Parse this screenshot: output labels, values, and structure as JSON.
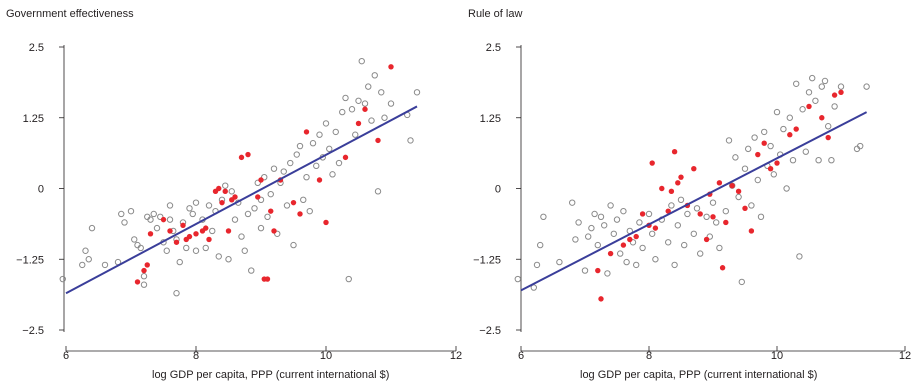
{
  "chart_data": [
    {
      "type": "scatter",
      "title": "Government effectiveness",
      "xlabel": "log GDP per capita, PPP (current international $)",
      "ylabel": "",
      "xlim": [
        6,
        12
      ],
      "ylim": [
        -2.5,
        2.5
      ],
      "xticks": [
        6,
        8,
        10,
        12
      ],
      "yticks": [
        2.5,
        1.25,
        0,
        -1.25,
        -2.5
      ],
      "ytick_labels": [
        "2.5",
        "1.25",
        "0",
        "−1.25",
        "−2.5"
      ],
      "grid": false,
      "colors": {
        "other": "#8a8a8a",
        "highlight": "#e8262d",
        "fit": "#3a3e9a"
      },
      "fit_line": {
        "x": [
          6.0,
          11.4
        ],
        "y": [
          -1.85,
          1.45
        ]
      },
      "series": [
        {
          "marker": "open-circle",
          "color": "#8a8a8a",
          "points": [
            [
              5.95,
              -1.6
            ],
            [
              6.25,
              -1.35
            ],
            [
              6.3,
              -1.1
            ],
            [
              6.35,
              -1.25
            ],
            [
              6.4,
              -0.7
            ],
            [
              6.6,
              -1.35
            ],
            [
              6.8,
              -1.3
            ],
            [
              6.85,
              -0.45
            ],
            [
              6.9,
              -0.6
            ],
            [
              7.0,
              -0.4
            ],
            [
              7.05,
              -0.9
            ],
            [
              7.1,
              -1.0
            ],
            [
              7.15,
              -1.05
            ],
            [
              7.2,
              -1.55
            ],
            [
              7.2,
              -1.7
            ],
            [
              7.25,
              -0.5
            ],
            [
              7.3,
              -0.55
            ],
            [
              7.35,
              -0.45
            ],
            [
              7.4,
              -0.7
            ],
            [
              7.45,
              -0.5
            ],
            [
              7.5,
              -0.95
            ],
            [
              7.55,
              -1.1
            ],
            [
              7.6,
              -0.3
            ],
            [
              7.6,
              -0.55
            ],
            [
              7.65,
              -0.75
            ],
            [
              7.7,
              -0.9
            ],
            [
              7.7,
              -1.85
            ],
            [
              7.75,
              -1.3
            ],
            [
              7.8,
              -0.6
            ],
            [
              7.85,
              -1.05
            ],
            [
              7.9,
              -0.35
            ],
            [
              7.95,
              -0.45
            ],
            [
              8.0,
              -1.1
            ],
            [
              8.0,
              -0.25
            ],
            [
              8.1,
              -0.55
            ],
            [
              8.15,
              -1.05
            ],
            [
              8.2,
              -0.3
            ],
            [
              8.25,
              -0.75
            ],
            [
              8.3,
              -0.4
            ],
            [
              8.35,
              -1.2
            ],
            [
              8.4,
              -0.2
            ],
            [
              8.45,
              0.05
            ],
            [
              8.5,
              -1.25
            ],
            [
              8.55,
              -0.05
            ],
            [
              8.6,
              -0.55
            ],
            [
              8.65,
              -0.25
            ],
            [
              8.7,
              -0.85
            ],
            [
              8.75,
              -1.1
            ],
            [
              8.8,
              -0.45
            ],
            [
              8.85,
              -1.45
            ],
            [
              8.9,
              -0.35
            ],
            [
              8.95,
              0.1
            ],
            [
              9.0,
              -0.7
            ],
            [
              9.0,
              -0.2
            ],
            [
              9.05,
              0.2
            ],
            [
              9.1,
              -0.5
            ],
            [
              9.15,
              -0.1
            ],
            [
              9.2,
              0.35
            ],
            [
              9.25,
              -0.8
            ],
            [
              9.3,
              0.1
            ],
            [
              9.35,
              0.3
            ],
            [
              9.4,
              -0.3
            ],
            [
              9.45,
              0.45
            ],
            [
              9.5,
              -1.0
            ],
            [
              9.55,
              0.6
            ],
            [
              9.6,
              0.75
            ],
            [
              9.65,
              -0.2
            ],
            [
              9.7,
              0.2
            ],
            [
              9.75,
              -0.4
            ],
            [
              9.8,
              0.8
            ],
            [
              9.85,
              0.4
            ],
            [
              9.9,
              0.95
            ],
            [
              9.95,
              0.55
            ],
            [
              10.0,
              1.15
            ],
            [
              10.05,
              0.7
            ],
            [
              10.1,
              0.25
            ],
            [
              10.15,
              1.0
            ],
            [
              10.2,
              0.45
            ],
            [
              10.25,
              1.35
            ],
            [
              10.3,
              1.6
            ],
            [
              10.35,
              -1.6
            ],
            [
              10.4,
              1.4
            ],
            [
              10.45,
              0.95
            ],
            [
              10.5,
              1.55
            ],
            [
              10.55,
              2.25
            ],
            [
              10.6,
              1.5
            ],
            [
              10.65,
              1.8
            ],
            [
              10.7,
              1.2
            ],
            [
              10.75,
              2.0
            ],
            [
              10.8,
              -0.05
            ],
            [
              10.85,
              1.7
            ],
            [
              10.9,
              1.25
            ],
            [
              11.0,
              1.5
            ],
            [
              11.25,
              1.3
            ],
            [
              11.3,
              0.85
            ],
            [
              11.4,
              1.7
            ]
          ]
        },
        {
          "marker": "filled-dot",
          "color": "#e8262d",
          "points": [
            [
              7.1,
              -1.65
            ],
            [
              7.2,
              -1.45
            ],
            [
              7.25,
              -1.35
            ],
            [
              7.3,
              -0.8
            ],
            [
              7.5,
              -0.55
            ],
            [
              7.6,
              -0.75
            ],
            [
              7.7,
              -0.95
            ],
            [
              7.8,
              -0.65
            ],
            [
              7.85,
              -0.9
            ],
            [
              7.9,
              -0.85
            ],
            [
              8.0,
              -0.8
            ],
            [
              8.1,
              -0.75
            ],
            [
              8.15,
              -0.7
            ],
            [
              8.2,
              -0.9
            ],
            [
              8.3,
              -0.05
            ],
            [
              8.35,
              0.0
            ],
            [
              8.4,
              -0.25
            ],
            [
              8.45,
              -0.05
            ],
            [
              8.5,
              -0.75
            ],
            [
              8.55,
              -0.2
            ],
            [
              8.6,
              -0.15
            ],
            [
              8.7,
              0.55
            ],
            [
              8.8,
              0.6
            ],
            [
              8.95,
              -0.15
            ],
            [
              9.0,
              0.15
            ],
            [
              9.05,
              -1.6
            ],
            [
              9.1,
              -1.6
            ],
            [
              9.15,
              -0.4
            ],
            [
              9.2,
              -0.75
            ],
            [
              9.3,
              0.15
            ],
            [
              9.5,
              -0.25
            ],
            [
              9.6,
              -0.45
            ],
            [
              9.7,
              1.0
            ],
            [
              9.9,
              0.15
            ],
            [
              10.0,
              -0.6
            ],
            [
              10.3,
              0.55
            ],
            [
              10.5,
              1.15
            ],
            [
              10.6,
              1.4
            ],
            [
              10.8,
              0.85
            ],
            [
              11.0,
              2.15
            ]
          ]
        }
      ]
    },
    {
      "type": "scatter",
      "title": "Rule of law",
      "xlabel": "log GDP per capita, PPP (current international $)",
      "ylabel": "",
      "xlim": [
        6,
        12
      ],
      "ylim": [
        -2.5,
        2.5
      ],
      "xticks": [
        6,
        8,
        10,
        12
      ],
      "yticks": [
        2.5,
        1.25,
        0,
        -1.25,
        -2.5
      ],
      "ytick_labels": [
        "2.5",
        "1.25",
        "0",
        "−1.25",
        "−2.5"
      ],
      "grid": false,
      "colors": {
        "other": "#8a8a8a",
        "highlight": "#e8262d",
        "fit": "#3a3e9a"
      },
      "fit_line": {
        "x": [
          6.0,
          11.4
        ],
        "y": [
          -1.8,
          1.35
        ]
      },
      "series": [
        {
          "marker": "open-circle",
          "color": "#8a8a8a",
          "points": [
            [
              5.95,
              -1.6
            ],
            [
              6.2,
              -1.75
            ],
            [
              6.25,
              -1.35
            ],
            [
              6.3,
              -1.0
            ],
            [
              6.35,
              -0.5
            ],
            [
              6.6,
              -1.3
            ],
            [
              6.8,
              -0.25
            ],
            [
              6.85,
              -0.9
            ],
            [
              6.9,
              -0.6
            ],
            [
              7.0,
              -1.45
            ],
            [
              7.05,
              -0.85
            ],
            [
              7.1,
              -0.7
            ],
            [
              7.15,
              -0.45
            ],
            [
              7.2,
              -1.0
            ],
            [
              7.25,
              -0.5
            ],
            [
              7.3,
              -0.65
            ],
            [
              7.35,
              -1.5
            ],
            [
              7.4,
              -0.3
            ],
            [
              7.45,
              -0.8
            ],
            [
              7.5,
              -0.55
            ],
            [
              7.55,
              -1.15
            ],
            [
              7.6,
              -0.4
            ],
            [
              7.65,
              -1.3
            ],
            [
              7.7,
              -0.75
            ],
            [
              7.75,
              -0.95
            ],
            [
              7.8,
              -1.35
            ],
            [
              7.85,
              -0.6
            ],
            [
              7.9,
              -1.05
            ],
            [
              8.0,
              -0.45
            ],
            [
              8.05,
              -0.8
            ],
            [
              8.1,
              -1.25
            ],
            [
              8.2,
              -0.55
            ],
            [
              8.3,
              -0.95
            ],
            [
              8.35,
              -0.3
            ],
            [
              8.4,
              -1.35
            ],
            [
              8.45,
              -0.65
            ],
            [
              8.5,
              -0.2
            ],
            [
              8.55,
              -1.0
            ],
            [
              8.6,
              -0.45
            ],
            [
              8.7,
              -0.8
            ],
            [
              8.75,
              -0.35
            ],
            [
              8.8,
              -1.15
            ],
            [
              8.9,
              -0.5
            ],
            [
              8.95,
              -0.85
            ],
            [
              9.0,
              -0.25
            ],
            [
              9.05,
              -0.6
            ],
            [
              9.1,
              -1.05
            ],
            [
              9.2,
              -0.4
            ],
            [
              9.25,
              0.85
            ],
            [
              9.3,
              0.05
            ],
            [
              9.35,
              0.55
            ],
            [
              9.4,
              -0.15
            ],
            [
              9.45,
              -1.65
            ],
            [
              9.5,
              0.35
            ],
            [
              9.55,
              0.7
            ],
            [
              9.6,
              -0.3
            ],
            [
              9.65,
              0.9
            ],
            [
              9.7,
              0.15
            ],
            [
              9.75,
              -0.5
            ],
            [
              9.8,
              1.0
            ],
            [
              9.85,
              0.4
            ],
            [
              9.9,
              0.75
            ],
            [
              9.95,
              0.25
            ],
            [
              10.0,
              1.35
            ],
            [
              10.05,
              0.6
            ],
            [
              10.1,
              1.05
            ],
            [
              10.15,
              0.0
            ],
            [
              10.2,
              1.25
            ],
            [
              10.25,
              0.5
            ],
            [
              10.3,
              1.85
            ],
            [
              10.35,
              -1.2
            ],
            [
              10.4,
              1.4
            ],
            [
              10.45,
              0.65
            ],
            [
              10.5,
              1.7
            ],
            [
              10.55,
              1.95
            ],
            [
              10.6,
              1.55
            ],
            [
              10.65,
              0.5
            ],
            [
              10.7,
              1.8
            ],
            [
              10.75,
              1.9
            ],
            [
              10.8,
              1.1
            ],
            [
              10.85,
              0.5
            ],
            [
              10.9,
              1.45
            ],
            [
              11.0,
              1.8
            ],
            [
              11.25,
              0.7
            ],
            [
              11.3,
              0.75
            ],
            [
              11.4,
              1.8
            ]
          ]
        },
        {
          "marker": "filled-dot",
          "color": "#e8262d",
          "points": [
            [
              7.2,
              -1.45
            ],
            [
              7.25,
              -1.95
            ],
            [
              7.4,
              -1.15
            ],
            [
              7.6,
              -1.0
            ],
            [
              7.7,
              -0.9
            ],
            [
              7.8,
              -0.85
            ],
            [
              7.9,
              -0.45
            ],
            [
              8.0,
              -0.65
            ],
            [
              8.05,
              0.45
            ],
            [
              8.1,
              -0.7
            ],
            [
              8.2,
              0.0
            ],
            [
              8.3,
              -0.4
            ],
            [
              8.35,
              -0.05
            ],
            [
              8.4,
              0.65
            ],
            [
              8.45,
              0.1
            ],
            [
              8.5,
              0.2
            ],
            [
              8.6,
              -0.3
            ],
            [
              8.7,
              0.35
            ],
            [
              8.8,
              -0.45
            ],
            [
              8.9,
              -0.9
            ],
            [
              8.95,
              -0.1
            ],
            [
              9.0,
              -0.5
            ],
            [
              9.1,
              0.1
            ],
            [
              9.15,
              -1.4
            ],
            [
              9.2,
              -0.6
            ],
            [
              9.3,
              0.05
            ],
            [
              9.4,
              -0.05
            ],
            [
              9.5,
              -0.35
            ],
            [
              9.6,
              -0.75
            ],
            [
              9.7,
              0.6
            ],
            [
              9.8,
              0.8
            ],
            [
              9.9,
              0.35
            ],
            [
              10.0,
              0.45
            ],
            [
              10.2,
              0.95
            ],
            [
              10.3,
              1.05
            ],
            [
              10.5,
              1.45
            ],
            [
              10.7,
              1.25
            ],
            [
              10.8,
              0.9
            ],
            [
              10.9,
              1.65
            ],
            [
              11.0,
              1.7
            ]
          ]
        }
      ]
    }
  ]
}
